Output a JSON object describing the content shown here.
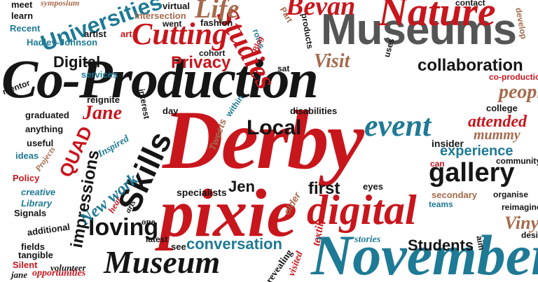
{
  "palette": {
    "black": "#151515",
    "red": "#c8161d",
    "blue": "#1f7a95",
    "brown": "#a66a4c",
    "grey": "#555555",
    "background": "#ffffff"
  },
  "words": {
    "co_production": "Co-Production",
    "derby": "Derby",
    "pixie": "pixie",
    "museums": "Museums",
    "museum": "Museum",
    "nature": "Nature",
    "cutting": "Cutting",
    "digital_large": "digital",
    "november": "November",
    "skills": "Skills",
    "event": "event",
    "studies": "Studies",
    "universities": "Universities",
    "bevan": "Bevan",
    "life": "Life",
    "local": "Local",
    "loving": "loving",
    "gallery": "gallery",
    "conversation": "conversation",
    "collaboration": "collaboration",
    "privacy": "Privacy",
    "visit": "Visit",
    "digital_small": "Digital",
    "jane_upper": "Jane",
    "quad": "QUAD",
    "impressions": "impressions",
    "new_work": "New work",
    "students": "Students",
    "experience": "experience",
    "first": "first",
    "jen": "Jen",
    "attended": "attended",
    "people": "people",
    "mummy": "mummy",
    "vinyl": "Vinyl",
    "inspired": "Inspired",
    "tweets": "Tweets",
    "textiles": "textiles",
    "insider": "insider",
    "specialists": "specialists",
    "older": "older",
    "revealing": "revealing",
    "visited": "visited",
    "stories": "stories",
    "see": "see",
    "hear": "hear",
    "arts": "arts",
    "one": "one",
    "latest": "latest",
    "fields": "fields",
    "tangible": "tangible",
    "silent": "Silent",
    "jane_lower": "jane",
    "opportunities": "opportunities",
    "volunteer": "volunteer",
    "additional": "additional",
    "signals": "Signals",
    "library": "Library",
    "creative": "creative",
    "policy": "Policy",
    "ideas": "ideas",
    "projects": "Projects",
    "useful": "useful",
    "anything": "anything",
    "graduated": "graduated",
    "reignite": "reignite",
    "services": "services",
    "mentor": "mentor",
    "hadley_johnson": "Hadley-Johnson",
    "recent": "Recent",
    "learn": "learn",
    "meet": "meet",
    "symposium": "symposium",
    "artist": "artist",
    "art": "art",
    "virtual": "virtual",
    "intersection": "intersection",
    "went": "went",
    "fashion": "fashion",
    "roles": "roles",
    "part": "Part",
    "products": "products",
    "cohort": "cohort",
    "blog": "Blog",
    "sat": "sat",
    "uses": "uses",
    "interest": "interest",
    "day": "day",
    "within": "within",
    "disabilities": "disabilities",
    "eyes": "eyes",
    "college": "college",
    "co_production_small": "co-production",
    "can": "can",
    "secondary": "secondary",
    "teams": "teams",
    "organise": "organise",
    "reimagine": "reimagine",
    "aim": "aim",
    "design": "design",
    "community": "community",
    "contact": "contact",
    "develop": "develop"
  }
}
